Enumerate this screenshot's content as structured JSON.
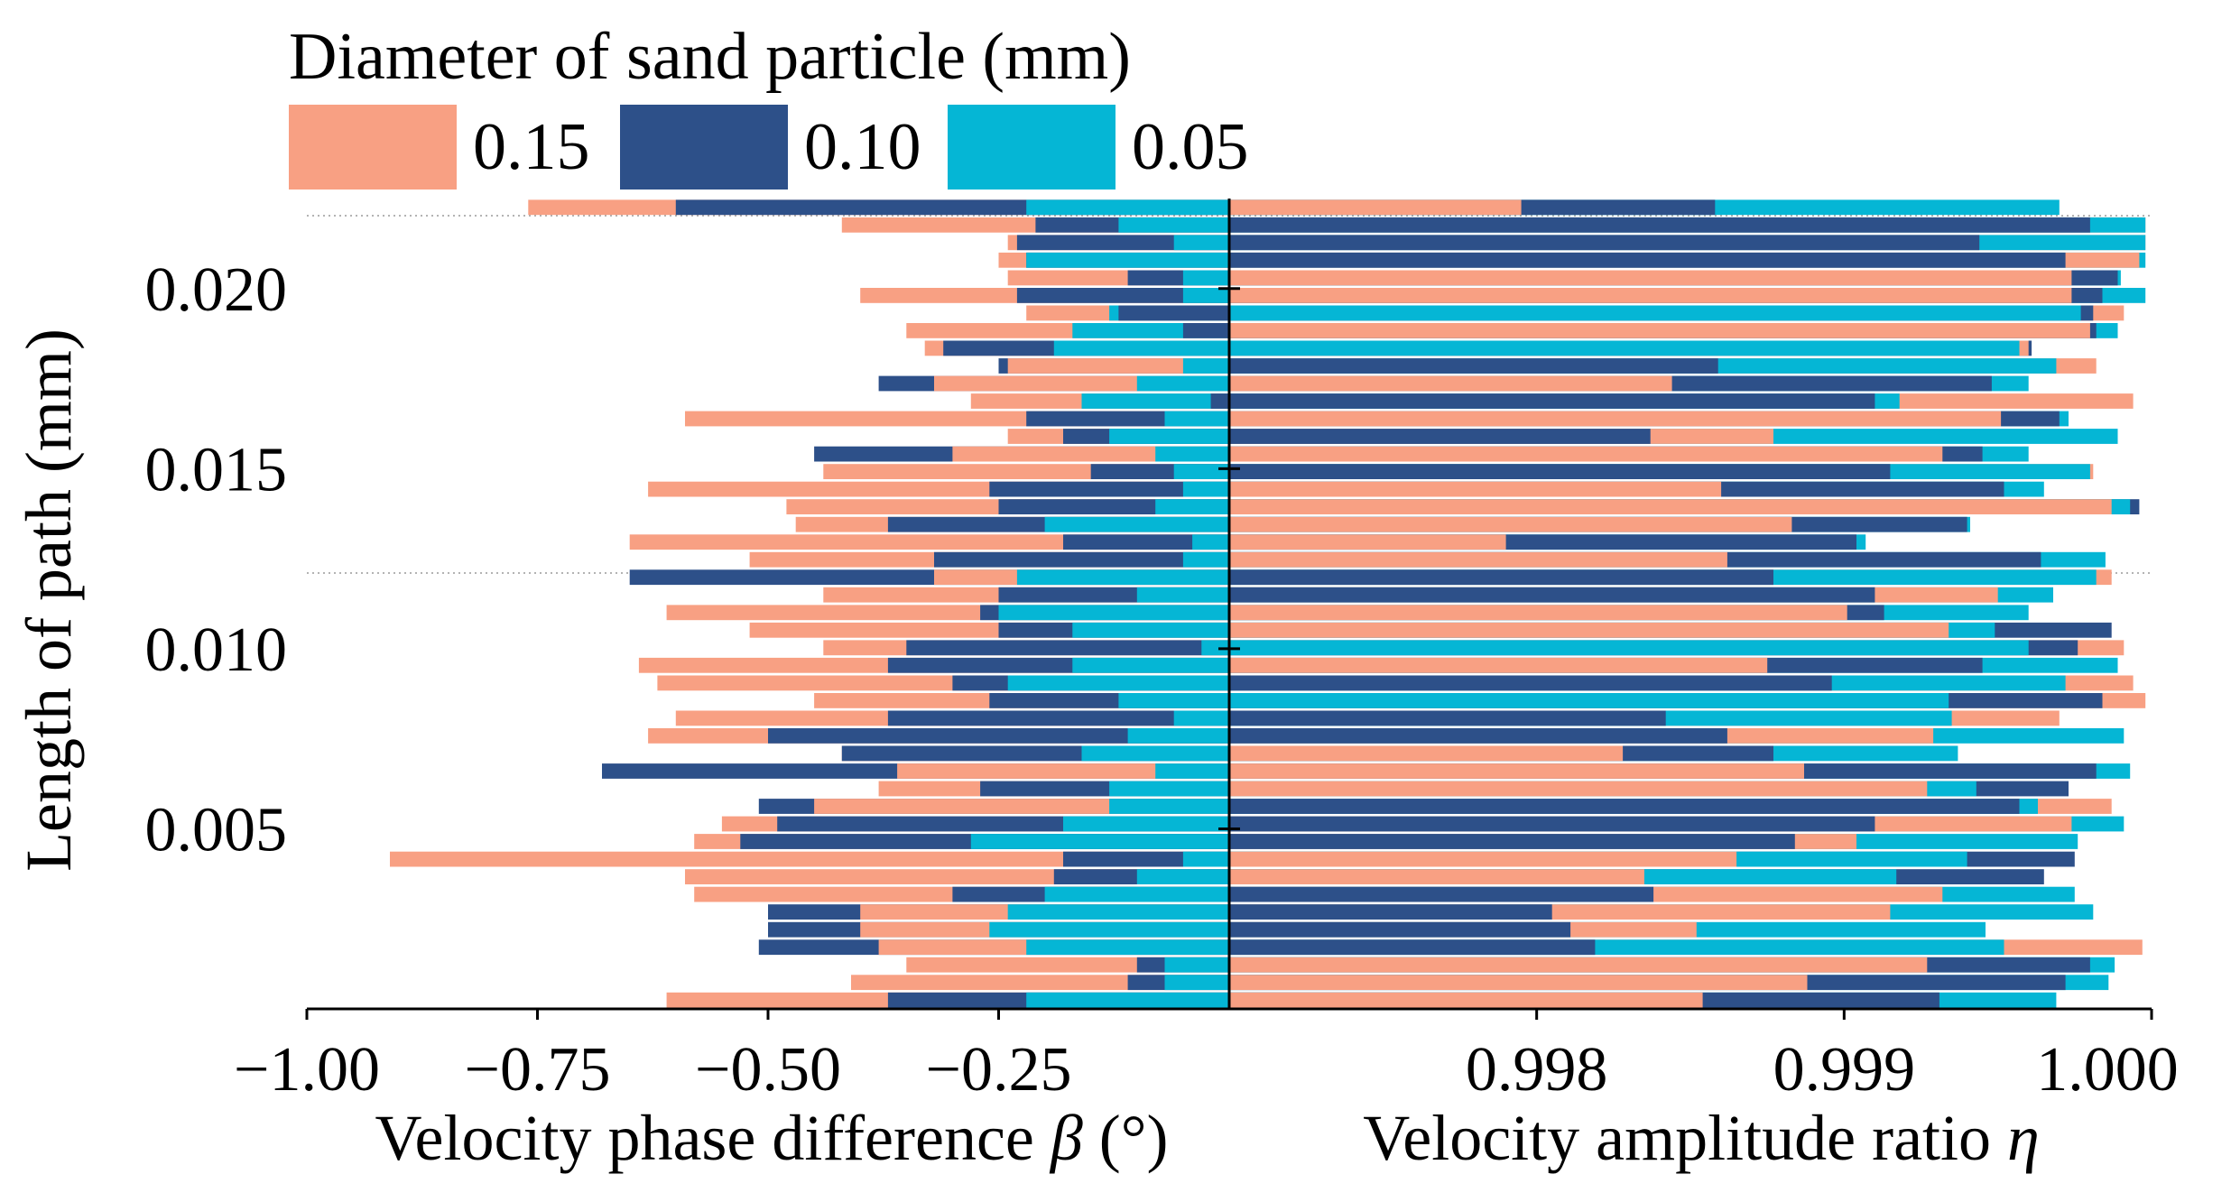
{
  "chart_data": {
    "type": "bar",
    "orientation": "horizontal",
    "layout": "two back-to-back stacked-overlap bar panels sharing one y axis",
    "legend": {
      "title": "Diameter of sand particle (mm)",
      "placement": "top-left",
      "entries": [
        {
          "label": "0.15",
          "color": "#f8a083"
        },
        {
          "label": "0.10",
          "color": "#2d5089"
        },
        {
          "label": "0.05",
          "color": "#05b6d5"
        }
      ]
    },
    "y_axis": {
      "label": "Length of path (mm)",
      "range": [
        0,
        0.0225
      ],
      "ticks": [
        "0.005",
        "0.010",
        "0.015",
        "0.020"
      ]
    },
    "left_panel": {
      "title": "Velocity phase difference β (°)",
      "title_text": "Velocity phase difference ",
      "title_symbol": "β",
      "title_suffix": " (°)",
      "xlim": [
        -1.0,
        0.0
      ],
      "ticks": [
        "−1.00",
        "−0.75",
        "−0.50",
        "−0.25"
      ],
      "series": [
        {
          "name": "0.15",
          "values": [
            -0.61,
            -0.41,
            -0.35,
            -0.38,
            -0.4,
            -0.4,
            -0.58,
            -0.59,
            -0.91,
            -0.58,
            -0.55,
            -0.45,
            -0.38,
            -0.36,
            -0.42,
            -0.63,
            -0.6,
            -0.45,
            -0.62,
            -0.64,
            -0.44,
            -0.52,
            -0.61,
            -0.44,
            -0.32,
            -0.52,
            -0.65,
            -0.47,
            -0.48,
            -0.63,
            -0.44,
            -0.3,
            -0.24,
            -0.59,
            -0.28,
            -0.32,
            -0.24,
            -0.33,
            -0.35,
            -0.22,
            -0.4,
            -0.24,
            -0.25,
            -0.24,
            -0.42,
            -0.76
          ]
        },
        {
          "name": "0.10",
          "values": [
            -0.37,
            -0.11,
            -0.1,
            -0.51,
            -0.5,
            -0.5,
            -0.3,
            -0.19,
            -0.18,
            -0.53,
            -0.49,
            -0.51,
            -0.27,
            -0.68,
            -0.42,
            -0.5,
            -0.37,
            -0.26,
            -0.3,
            -0.37,
            -0.35,
            -0.25,
            -0.27,
            -0.25,
            -0.65,
            -0.32,
            -0.18,
            -0.37,
            -0.25,
            -0.26,
            -0.15,
            -0.45,
            -0.18,
            -0.22,
            -0.02,
            -0.38,
            -0.25,
            -0.31,
            -0.05,
            -0.12,
            -0.23,
            -0.11,
            -0.22,
            -0.23,
            -0.21,
            -0.6
          ]
        },
        {
          "name": "0.05",
          "values": [
            -0.22,
            -0.07,
            -0.07,
            -0.22,
            -0.26,
            -0.24,
            -0.2,
            -0.1,
            -0.05,
            -0.28,
            -0.18,
            -0.13,
            -0.13,
            -0.08,
            -0.16,
            -0.11,
            -0.06,
            -0.12,
            -0.24,
            -0.17,
            -0.03,
            -0.17,
            -0.25,
            -0.1,
            -0.23,
            -0.05,
            -0.04,
            -0.2,
            -0.08,
            -0.05,
            -0.06,
            -0.08,
            -0.13,
            -0.07,
            -0.16,
            -0.1,
            -0.05,
            -0.19,
            -0.17,
            -0.13,
            -0.05,
            -0.05,
            -0.22,
            -0.06,
            -0.12,
            -0.22
          ]
        }
      ]
    },
    "right_panel": {
      "title": "Velocity amplitude ratio η",
      "title_text": "Velocity amplitude ratio ",
      "title_symbol": "η",
      "xlim": [
        0.997,
        1.0
      ],
      "ticks": [
        "0.998",
        "0.999",
        "1.000"
      ],
      "series": [
        {
          "name": "0.15",
          "values": [
            0.99854,
            0.99888,
            0.99927,
            0.99997,
            0.99852,
            0.99915,
            0.99932,
            0.99835,
            0.99865,
            0.99904,
            0.99974,
            0.99987,
            0.99927,
            0.99887,
            0.99828,
            0.99929,
            0.9997,
            0.99998,
            0.99994,
            0.99875,
            0.99991,
            0.99934,
            0.99901,
            0.9995,
            0.99987,
            0.99862,
            0.9979,
            0.99883,
            0.99987,
            0.9986,
            0.99981,
            0.99932,
            0.99877,
            0.99951,
            0.99994,
            0.99844,
            0.99982,
            0.9996,
            0.9998,
            0.99991,
            0.99974,
            0.99974,
            0.99996,
            0.99998,
            0.99998,
            0.99795
          ]
        },
        {
          "name": "0.10",
          "values": [
            0.99931,
            0.99972,
            0.9998,
            0.99819,
            0.99811,
            0.99805,
            0.99838,
            0.99965,
            0.99975,
            0.99884,
            0.9991,
            0.99957,
            0.99973,
            0.99982,
            0.99877,
            0.99862,
            0.99842,
            0.99984,
            0.99896,
            0.99945,
            0.99976,
            0.99987,
            0.99913,
            0.9991,
            0.99877,
            0.99964,
            0.99904,
            0.9994,
            0.99996,
            0.99952,
            0.99915,
            0.99945,
            0.99837,
            0.9997,
            0.9991,
            0.99948,
            0.99859,
            0.99961,
            0.99982,
            0.99981,
            0.99984,
            0.99989,
            0.99972,
            0.99944,
            0.9998,
            0.99858
          ]
        },
        {
          "name": "0.05",
          "values": [
            0.99969,
            0.99986,
            0.99988,
            0.99952,
            0.99946,
            0.99981,
            0.99975,
            0.99917,
            0.9994,
            0.99976,
            0.99991,
            0.99963,
            0.99943,
            0.99993,
            0.99937,
            0.99991,
            0.99935,
            0.99934,
            0.99972,
            0.99989,
            0.9996,
            0.99949,
            0.9996,
            0.99968,
            0.99982,
            0.99985,
            0.99907,
            0.99941,
            0.99993,
            0.99965,
            0.9998,
            0.9996,
            0.99989,
            0.99973,
            0.99918,
            0.9996,
            0.99969,
            0.99957,
            0.99989,
            0.99977,
            0.99998,
            0.9999,
            0.99998,
            0.99998,
            0.99998,
            0.9997
          ]
        }
      ]
    },
    "gridlines": "faint dotted horizontal lines at top and mid path",
    "grid": false
  }
}
